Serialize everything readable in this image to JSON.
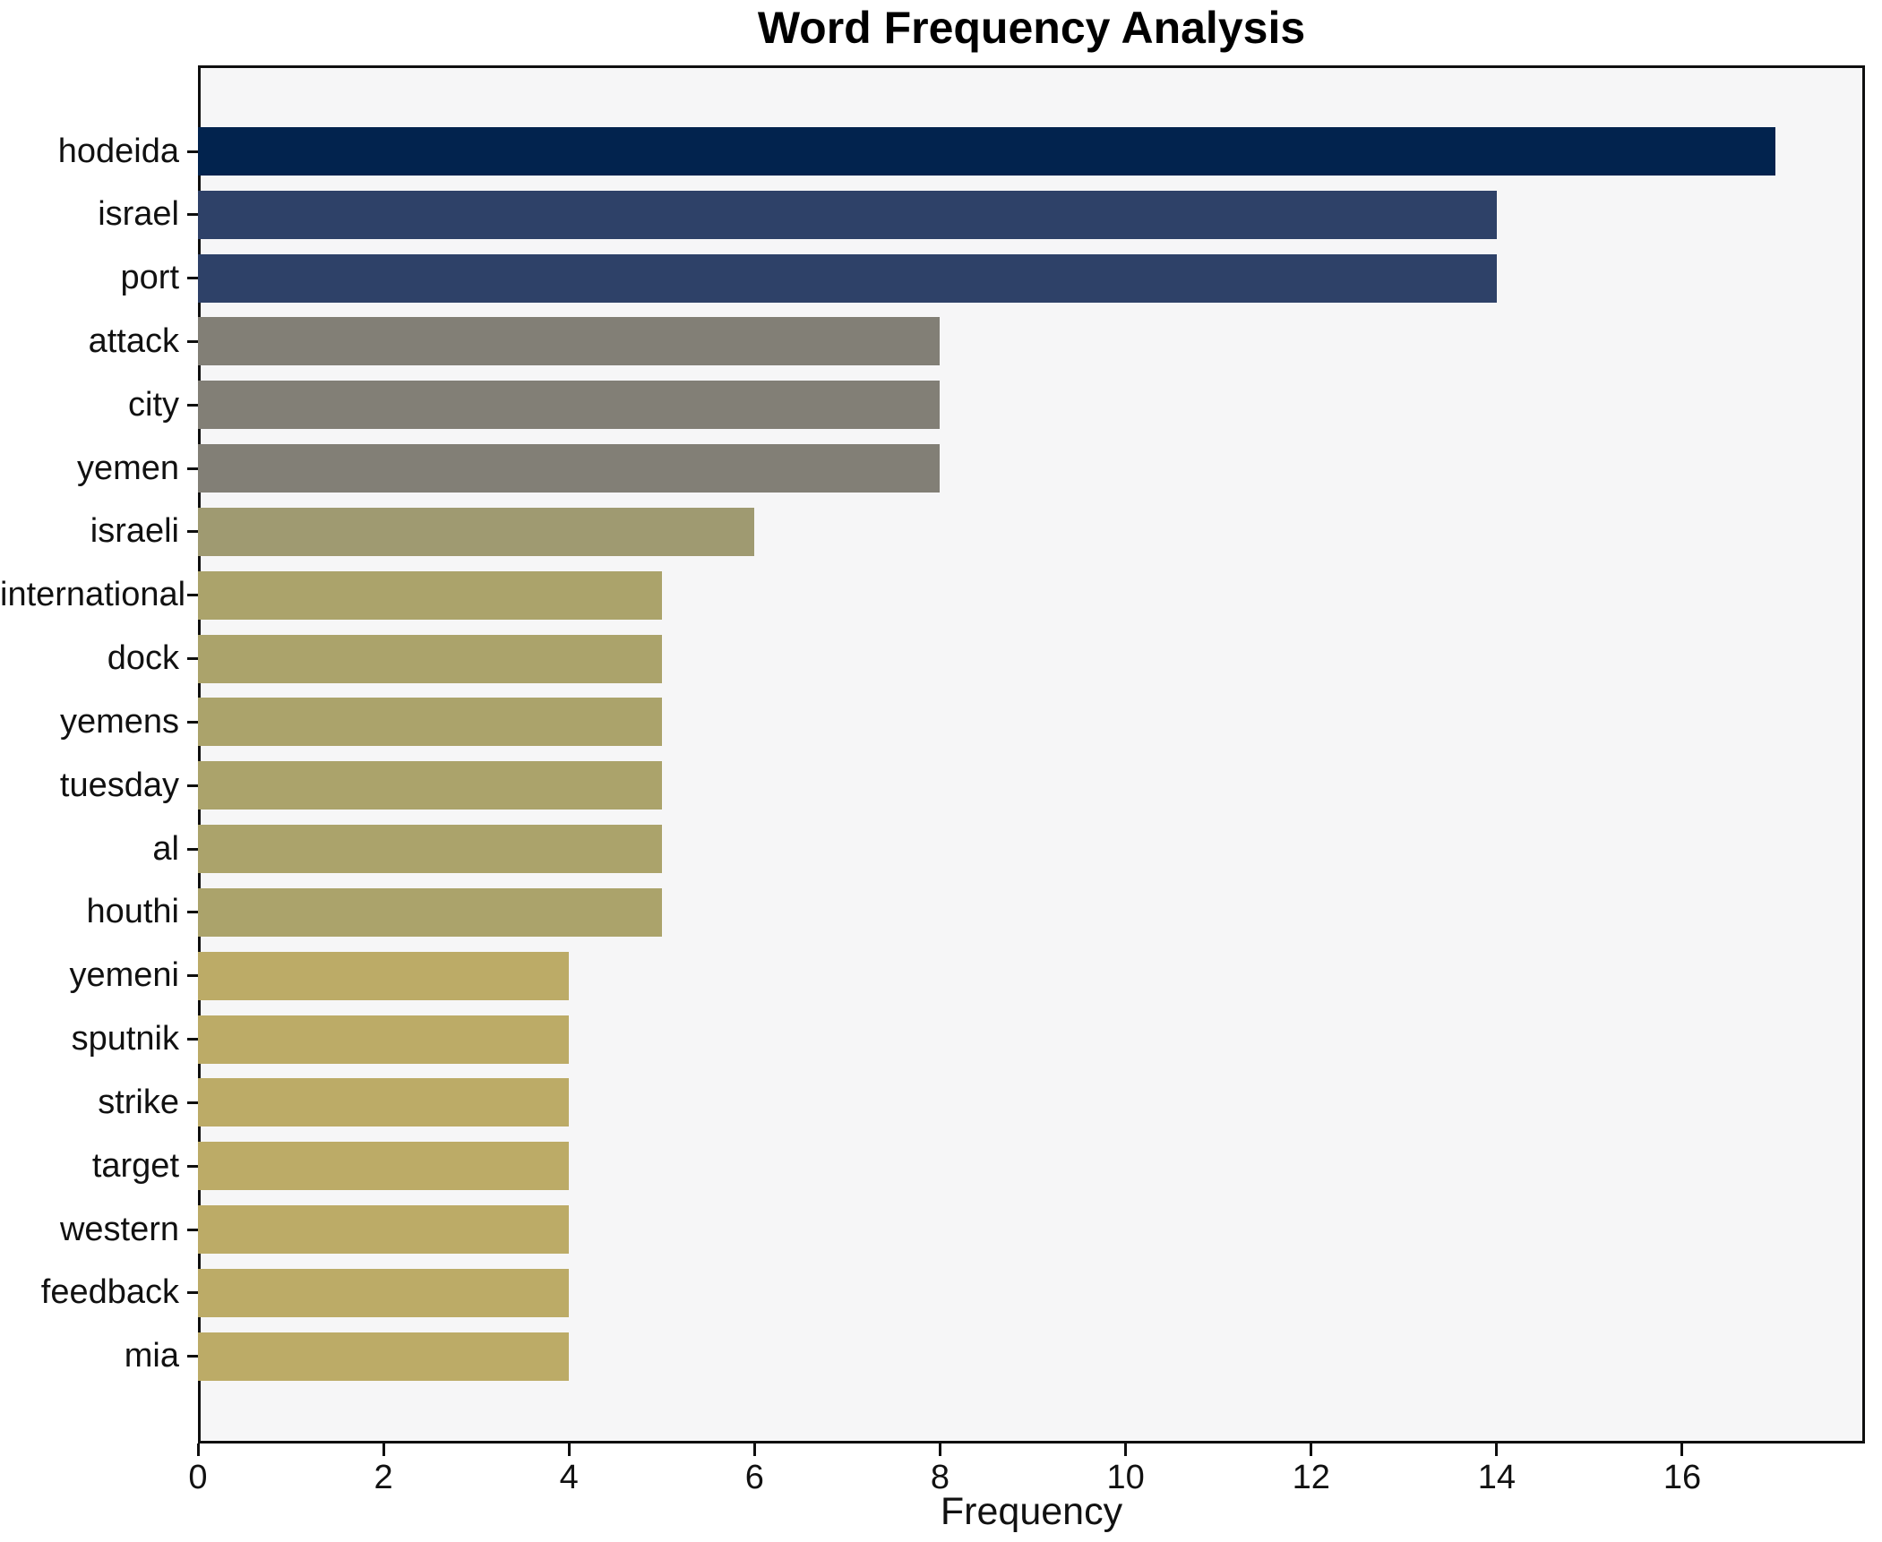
{
  "figure": {
    "background": "#ffffff",
    "axes_background": "#f6f6f7",
    "spine_color": "#0f0f0f",
    "text_color": "#111111"
  },
  "chart_data": {
    "type": "bar",
    "orientation": "horizontal",
    "title": "Word Frequency Analysis",
    "xlabel": "Frequency",
    "ylabel": "",
    "grid": false,
    "categories": [
      "hodeida",
      "israel",
      "port",
      "attack",
      "city",
      "yemen",
      "israeli",
      "international",
      "dock",
      "yemens",
      "tuesday",
      "al",
      "houthi",
      "yemeni",
      "sputnik",
      "strike",
      "target",
      "western",
      "feedback",
      "mia"
    ],
    "values": [
      17,
      14,
      14,
      8,
      8,
      8,
      6,
      5,
      5,
      5,
      5,
      5,
      5,
      4,
      4,
      4,
      4,
      4,
      4,
      4
    ],
    "bar_colors": [
      "#02234e",
      "#2e4168",
      "#2e4168",
      "#827f76",
      "#827f76",
      "#827f76",
      "#9f9a71",
      "#aba36b",
      "#aba36b",
      "#aba36b",
      "#aba36b",
      "#aba36b",
      "#aba36b",
      "#bcab67",
      "#bcab67",
      "#bcab67",
      "#bcab67",
      "#bcab67",
      "#bcab67",
      "#bcab67"
    ],
    "xticks": [
      0,
      2,
      4,
      6,
      8,
      10,
      12,
      14,
      16
    ],
    "xlim": [
      0,
      17.97
    ]
  }
}
